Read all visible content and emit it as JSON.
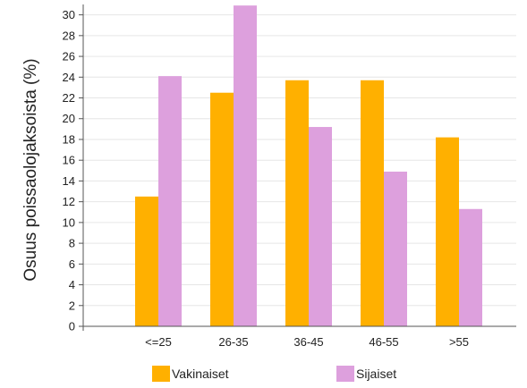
{
  "chart_data": {
    "type": "bar",
    "title": "",
    "xlabel": "",
    "ylabel": "Osuus poissaolojaksoista (%)",
    "categories": [
      "<=25",
      "26-35",
      "36-45",
      "46-55",
      ">55"
    ],
    "series": [
      {
        "name": "Vakinaiset",
        "color": "#ffb000",
        "values": [
          12.5,
          22.5,
          23.7,
          23.7,
          18.2
        ]
      },
      {
        "name": "Sijaiset",
        "color": "#dda0dd",
        "values": [
          24.1,
          30.9,
          19.2,
          14.9,
          11.3
        ]
      }
    ],
    "yticks": [
      0,
      2,
      4,
      6,
      8,
      10,
      12,
      14,
      16,
      18,
      20,
      22,
      24,
      26,
      28,
      30
    ],
    "ylim": [
      0,
      31
    ],
    "grid": true,
    "legend_position": "bottom"
  }
}
